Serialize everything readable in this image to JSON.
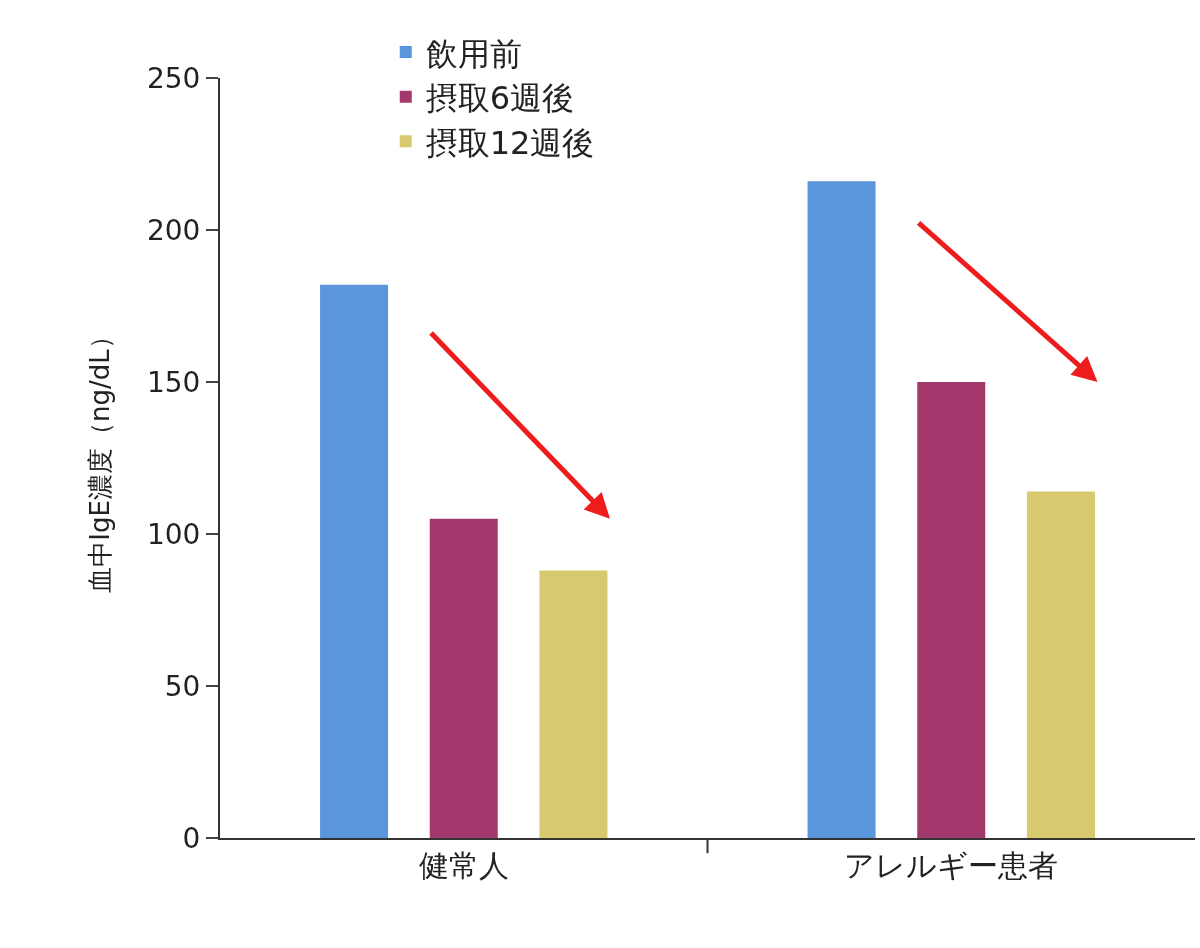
{
  "chart_data": {
    "type": "bar",
    "ylabel": "血中IgE濃度（ng/dL）",
    "categories": [
      "健常人",
      "アレルギー患者"
    ],
    "series": [
      {
        "name": "飲用前",
        "color": "#5b96dc",
        "values": [
          182,
          216
        ]
      },
      {
        "name": "摂取6週後",
        "color": "#a2386c",
        "values": [
          105,
          150
        ]
      },
      {
        "name": "摂取12週後",
        "color": "#d7c96e",
        "values": [
          88,
          114
        ]
      }
    ],
    "ylim": [
      0,
      250
    ],
    "yticks": [
      0,
      50,
      100,
      150,
      200,
      250
    ],
    "legend": "top"
  }
}
